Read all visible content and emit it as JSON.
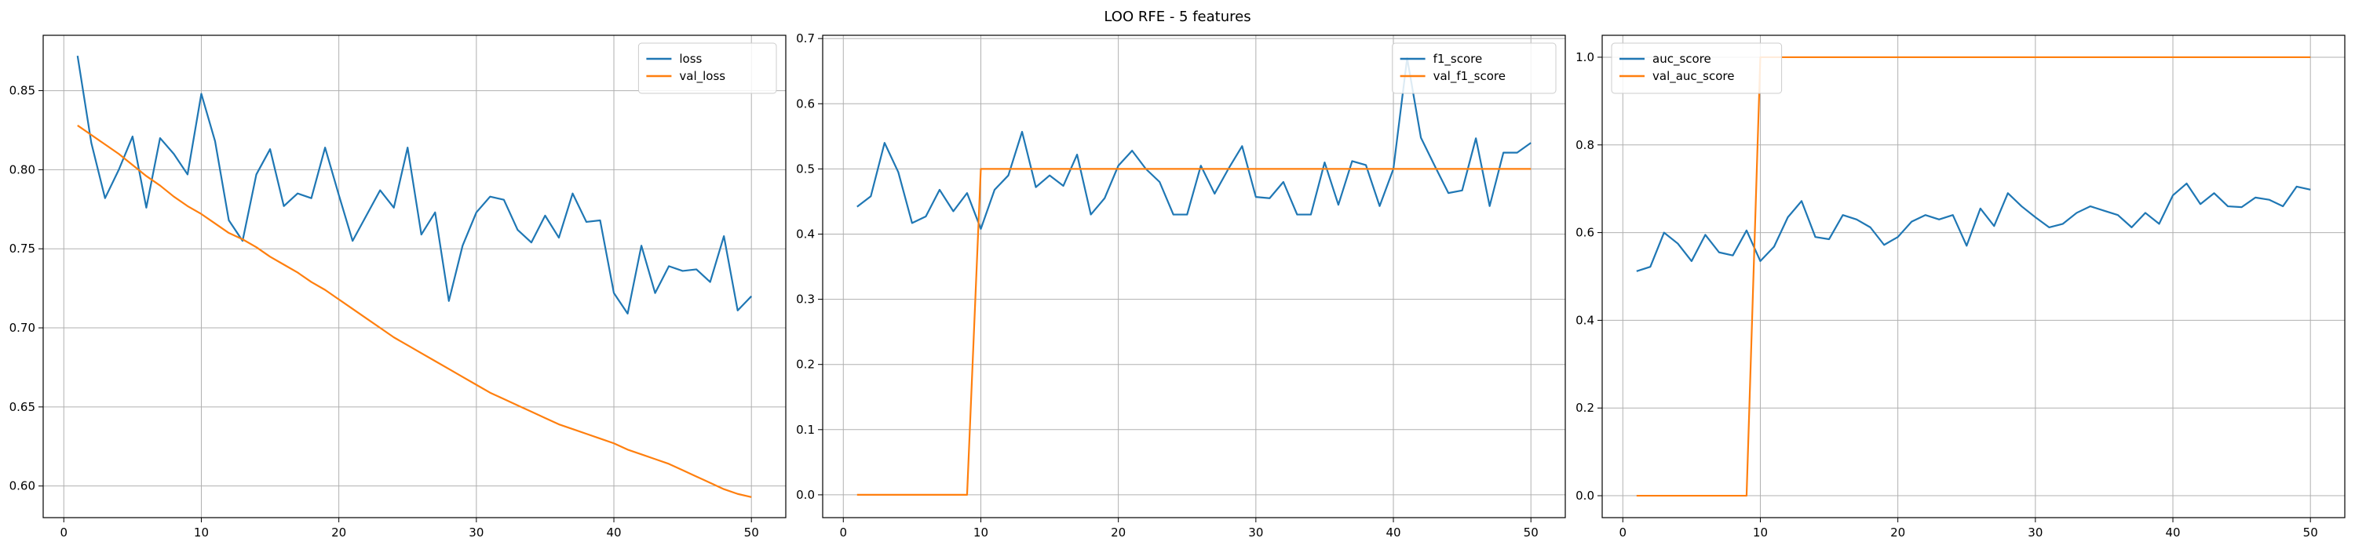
{
  "figure": {
    "title": "LOO RFE - 5 features"
  },
  "colors": {
    "series1": "#1f77b4",
    "series2": "#ff7f0e",
    "grid": "#b0b0b0",
    "axis": "#000000"
  },
  "chart_data": [
    {
      "type": "line",
      "x": [
        1,
        2,
        3,
        4,
        5,
        6,
        7,
        8,
        9,
        10,
        11,
        12,
        13,
        14,
        15,
        16,
        17,
        18,
        19,
        20,
        21,
        22,
        23,
        24,
        25,
        26,
        27,
        28,
        29,
        30,
        31,
        32,
        33,
        34,
        35,
        36,
        37,
        38,
        39,
        40,
        41,
        42,
        43,
        44,
        45,
        46,
        47,
        48,
        49,
        50
      ],
      "series": [
        {
          "name": "loss",
          "color": "#1f77b4",
          "values": [
            0.872,
            0.817,
            0.782,
            0.8,
            0.821,
            0.776,
            0.82,
            0.81,
            0.797,
            0.848,
            0.818,
            0.768,
            0.755,
            0.797,
            0.813,
            0.777,
            0.785,
            0.782,
            0.814,
            0.784,
            0.755,
            0.771,
            0.787,
            0.776,
            0.814,
            0.759,
            0.773,
            0.717,
            0.752,
            0.773,
            0.783,
            0.781,
            0.762,
            0.754,
            0.771,
            0.757,
            0.785,
            0.767,
            0.768,
            0.722,
            0.709,
            0.752,
            0.722,
            0.739,
            0.736,
            0.737,
            0.729,
            0.758,
            0.711,
            0.72
          ]
        },
        {
          "name": "val_loss",
          "color": "#ff7f0e",
          "values": [
            0.828,
            0.822,
            0.816,
            0.81,
            0.803,
            0.796,
            0.79,
            0.783,
            0.777,
            0.772,
            0.766,
            0.76,
            0.756,
            0.751,
            0.745,
            0.74,
            0.735,
            0.729,
            0.724,
            0.718,
            0.712,
            0.706,
            0.7,
            0.694,
            0.689,
            0.684,
            0.679,
            0.674,
            0.669,
            0.664,
            0.659,
            0.655,
            0.651,
            0.647,
            0.643,
            0.639,
            0.636,
            0.633,
            0.63,
            0.627,
            0.623,
            0.62,
            0.617,
            0.614,
            0.61,
            0.606,
            0.602,
            0.598,
            0.595,
            0.593
          ]
        }
      ],
      "ylim": [
        0.58,
        0.885
      ],
      "xlim": [
        -1.5,
        52.5
      ],
      "yticks": [
        0.6,
        0.65,
        0.7,
        0.75,
        0.8,
        0.85
      ],
      "ytick_labels": [
        "0.60",
        "0.65",
        "0.70",
        "0.75",
        "0.80",
        "0.85"
      ],
      "xticks": [
        0,
        10,
        20,
        30,
        40,
        50
      ],
      "xtick_labels": [
        "0",
        "10",
        "20",
        "30",
        "40",
        "50"
      ],
      "grid": true,
      "legend": "top-right"
    },
    {
      "type": "line",
      "x": [
        1,
        2,
        3,
        4,
        5,
        6,
        7,
        8,
        9,
        10,
        11,
        12,
        13,
        14,
        15,
        16,
        17,
        18,
        19,
        20,
        21,
        22,
        23,
        24,
        25,
        26,
        27,
        28,
        29,
        30,
        31,
        32,
        33,
        34,
        35,
        36,
        37,
        38,
        39,
        40,
        41,
        42,
        43,
        44,
        45,
        46,
        47,
        48,
        49,
        50
      ],
      "series": [
        {
          "name": "f1_score",
          "color": "#1f77b4",
          "values": [
            0.442,
            0.458,
            0.54,
            0.495,
            0.417,
            0.427,
            0.468,
            0.435,
            0.463,
            0.408,
            0.468,
            0.49,
            0.557,
            0.472,
            0.49,
            0.474,
            0.522,
            0.43,
            0.455,
            0.505,
            0.528,
            0.5,
            0.48,
            0.43,
            0.43,
            0.505,
            0.462,
            0.5,
            0.535,
            0.457,
            0.455,
            0.48,
            0.43,
            0.43,
            0.51,
            0.445,
            0.512,
            0.506,
            0.443,
            0.5,
            0.67,
            0.548,
            0.505,
            0.463,
            0.467,
            0.547,
            0.443,
            0.525,
            0.525,
            0.54
          ]
        },
        {
          "name": "val_f1_score",
          "color": "#ff7f0e",
          "values": [
            0,
            0,
            0,
            0,
            0,
            0,
            0,
            0,
            0,
            0.5,
            0.5,
            0.5,
            0.5,
            0.5,
            0.5,
            0.5,
            0.5,
            0.5,
            0.5,
            0.5,
            0.5,
            0.5,
            0.5,
            0.5,
            0.5,
            0.5,
            0.5,
            0.5,
            0.5,
            0.5,
            0.5,
            0.5,
            0.5,
            0.5,
            0.5,
            0.5,
            0.5,
            0.5,
            0.5,
            0.5,
            0.5,
            0.5,
            0.5,
            0.5,
            0.5,
            0.5,
            0.5,
            0.5,
            0.5,
            0.5
          ]
        }
      ],
      "ylim": [
        -0.035,
        0.705
      ],
      "xlim": [
        -1.5,
        52.5
      ],
      "yticks": [
        0.0,
        0.1,
        0.2,
        0.3,
        0.4,
        0.5,
        0.6,
        0.7
      ],
      "ytick_labels": [
        "0.0",
        "0.1",
        "0.2",
        "0.3",
        "0.4",
        "0.5",
        "0.6",
        "0.7"
      ],
      "xticks": [
        0,
        10,
        20,
        30,
        40,
        50
      ],
      "xtick_labels": [
        "0",
        "10",
        "20",
        "30",
        "40",
        "50"
      ],
      "grid": true,
      "legend": "top-right"
    },
    {
      "type": "line",
      "x": [
        1,
        2,
        3,
        4,
        5,
        6,
        7,
        8,
        9,
        10,
        11,
        12,
        13,
        14,
        15,
        16,
        17,
        18,
        19,
        20,
        21,
        22,
        23,
        24,
        25,
        26,
        27,
        28,
        29,
        30,
        31,
        32,
        33,
        34,
        35,
        36,
        37,
        38,
        39,
        40,
        41,
        42,
        43,
        44,
        45,
        46,
        47,
        48,
        49,
        50
      ],
      "series": [
        {
          "name": "auc_score",
          "color": "#1f77b4",
          "values": [
            0.512,
            0.522,
            0.6,
            0.575,
            0.535,
            0.595,
            0.555,
            0.548,
            0.605,
            0.535,
            0.568,
            0.635,
            0.672,
            0.59,
            0.585,
            0.64,
            0.63,
            0.612,
            0.572,
            0.59,
            0.625,
            0.64,
            0.63,
            0.64,
            0.57,
            0.655,
            0.615,
            0.69,
            0.66,
            0.635,
            0.612,
            0.62,
            0.645,
            0.66,
            0.65,
            0.64,
            0.612,
            0.645,
            0.62,
            0.685,
            0.712,
            0.665,
            0.69,
            0.66,
            0.658,
            0.68,
            0.675,
            0.66,
            0.705,
            0.698
          ]
        },
        {
          "name": "val_auc_score",
          "color": "#ff7f0e",
          "values": [
            0,
            0,
            0,
            0,
            0,
            0,
            0,
            0,
            0,
            1,
            1,
            1,
            1,
            1,
            1,
            1,
            1,
            1,
            1,
            1,
            1,
            1,
            1,
            1,
            1,
            1,
            1,
            1,
            1,
            1,
            1,
            1,
            1,
            1,
            1,
            1,
            1,
            1,
            1,
            1,
            1,
            1,
            1,
            1,
            1,
            1,
            1,
            1,
            1,
            1
          ]
        }
      ],
      "ylim": [
        -0.05,
        1.05
      ],
      "xlim": [
        -1.5,
        52.5
      ],
      "yticks": [
        0.0,
        0.2,
        0.4,
        0.6,
        0.8,
        1.0
      ],
      "ytick_labels": [
        "0.0",
        "0.2",
        "0.4",
        "0.6",
        "0.8",
        "1.0"
      ],
      "xticks": [
        0,
        10,
        20,
        30,
        40,
        50
      ],
      "xtick_labels": [
        "0",
        "10",
        "20",
        "30",
        "40",
        "50"
      ],
      "grid": true,
      "legend": "top-left"
    }
  ]
}
